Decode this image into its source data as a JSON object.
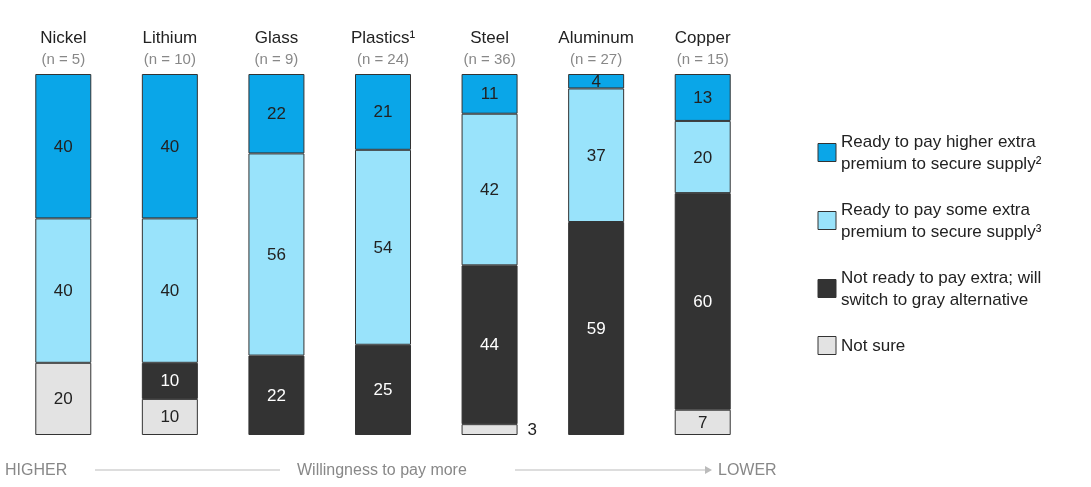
{
  "chart_data": {
    "type": "bar",
    "stacked": true,
    "data_labels": true,
    "legend": "right",
    "categories": [
      "Nickel\n(n = 5)",
      "Lithium\n(n = 10)",
      "Glass\n(n = 9)",
      "Plastics¹\n(n = 24)",
      "Steel\n(n = 36)",
      "Aluminum\n(n = 27)",
      "Copper\n(n = 15)"
    ],
    "series": [
      {
        "name": "Not sure",
        "color": "#e3e3e3",
        "values": [
          20,
          10,
          null,
          null,
          3,
          null,
          7
        ]
      },
      {
        "name": "Not ready to pay extra; will switch to gray alternative",
        "color": "#333333",
        "values": [
          null,
          10,
          22,
          25,
          44,
          59,
          60
        ]
      },
      {
        "name": "Ready to pay some extra premium to secure supply³",
        "color": "#99e3fb",
        "values": [
          40,
          40,
          56,
          54,
          42,
          37,
          20
        ]
      },
      {
        "name": "Ready to pay higher extra premium to secure supply²",
        "color": "#0aa6e8",
        "values": [
          40,
          40,
          22,
          21,
          11,
          4,
          13
        ]
      }
    ],
    "annotations": [
      "HIGHER",
      "Willingness to pay more",
      "LOWER"
    ]
  }
}
